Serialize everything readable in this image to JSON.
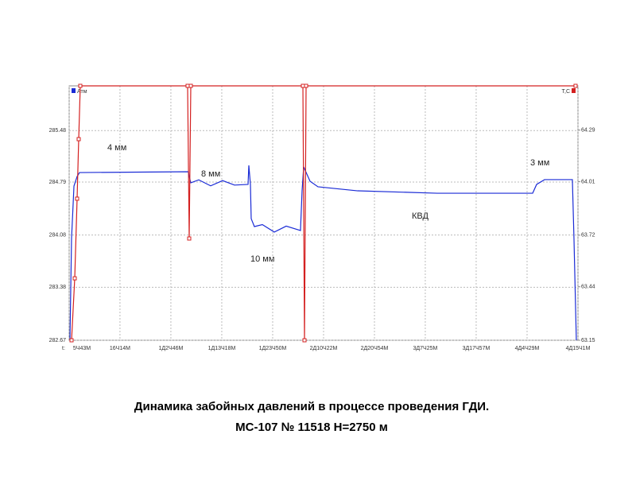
{
  "chart_data": {
    "type": "line",
    "xlabel": "t:",
    "x_unit_label": "Атм",
    "y2_unit_label": "Т,С",
    "xlim": [
      5.717,
      111.017
    ],
    "xticks": [
      {
        "value": 5.717,
        "label": "5Ч43М"
      },
      {
        "value": 16.233,
        "label": "16Ч14М"
      },
      {
        "value": 26.767,
        "label": "1Д2Ч46М"
      },
      {
        "value": 37.3,
        "label": "1Д13Ч18М"
      },
      {
        "value": 47.833,
        "label": "1Д23Ч50М"
      },
      {
        "value": 58.367,
        "label": "2Д10Ч22М"
      },
      {
        "value": 68.9,
        "label": "2Д20Ч54М"
      },
      {
        "value": 79.417,
        "label": "3Д7Ч25М"
      },
      {
        "value": 89.95,
        "label": "3Д17Ч57М"
      },
      {
        "value": 100.483,
        "label": "4Д4Ч29М"
      },
      {
        "value": 111.017,
        "label": "4Д15Ч1М"
      }
    ],
    "ylim": [
      282.67,
      286.08
    ],
    "yticks": [
      282.67,
      283.38,
      284.08,
      284.79,
      285.48
    ],
    "y2lim": [
      63.15,
      64.53
    ],
    "y2ticks": [
      63.15,
      63.44,
      63.72,
      64.01,
      64.29
    ],
    "grid": true,
    "series": [
      {
        "name": "Атм",
        "color": "#1a2bd6",
        "axis": "y",
        "x": [
          5.88,
          6.21,
          6.71,
          7.36,
          7.86,
          30.4,
          30.56,
          30.89,
          32.54,
          35.0,
          37.47,
          39.94,
          42.74,
          42.9,
          43.23,
          43.39,
          44.05,
          45.7,
          48.17,
          50.63,
          53.59,
          53.92,
          54.25,
          55.57,
          57.21,
          65.44,
          81.89,
          101.64,
          102.46,
          104.1,
          109.86,
          110.19,
          110.68
        ],
        "values": [
          282.67,
          284.034,
          284.737,
          284.865,
          284.918,
          284.929,
          284.865,
          284.78,
          284.82,
          284.74,
          284.81,
          284.75,
          284.759,
          285.014,
          284.759,
          284.3,
          284.194,
          284.22,
          284.12,
          284.2,
          284.141,
          284.673,
          284.993,
          284.801,
          284.727,
          284.673,
          284.641,
          284.641,
          284.759,
          284.823,
          284.823,
          284.034,
          282.67
        ]
      },
      {
        "name": "Т,С",
        "color": "#d42020",
        "axis": "y2",
        "x": [
          6.21,
          6.87,
          7.36,
          7.69,
          8.02,
          30.23,
          30.56,
          30.89,
          54.09,
          54.42,
          54.75,
          110.52
        ],
        "values": [
          63.15,
          63.486,
          63.918,
          64.241,
          64.53,
          64.53,
          63.702,
          64.53,
          64.53,
          63.15,
          64.53,
          64.53
        ]
      }
    ],
    "annotations": [
      "4 мм",
      "8 мм",
      "10 мм",
      "КВД",
      "3 мм"
    ],
    "caption": [
      "Динамика забойных давлений в процессе проведения ГДИ.",
      "МС-107 № 11518 Н=2750 м"
    ]
  }
}
